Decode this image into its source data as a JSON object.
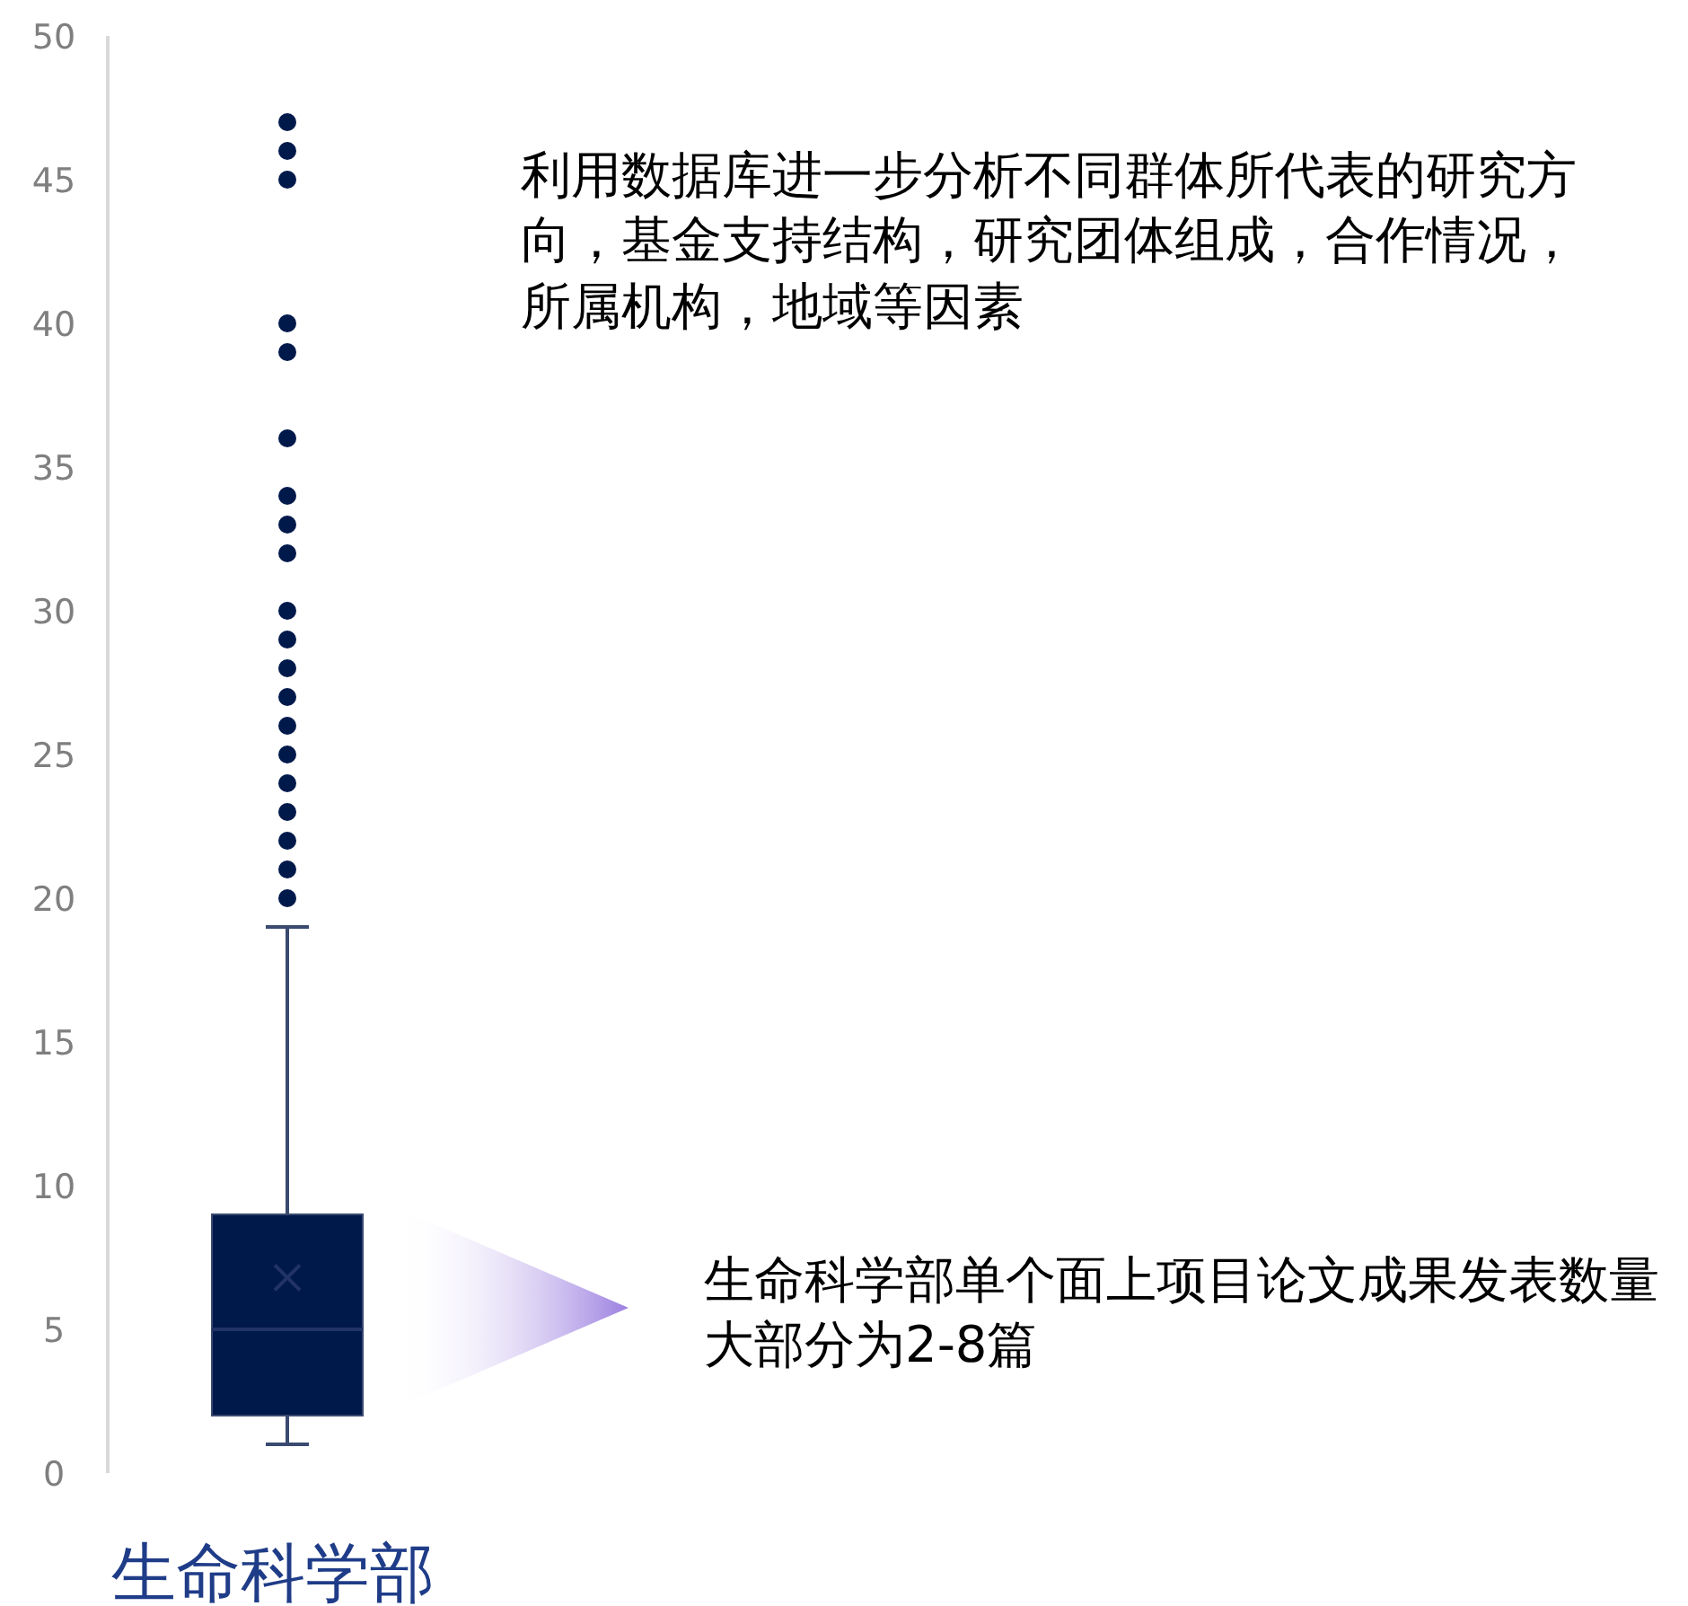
{
  "chart_data": {
    "type": "box",
    "categories": [
      "生命科学部"
    ],
    "boxes": [
      {
        "low": 1,
        "q1": 2,
        "median": 5,
        "q3": 9,
        "high": 19,
        "mean": 6.8,
        "outliers": [
          20,
          21,
          22,
          23,
          24,
          25,
          26,
          27,
          28,
          29,
          30,
          32,
          33,
          34,
          36,
          39,
          40,
          45,
          46,
          47
        ]
      }
    ],
    "color": "#00194b",
    "marker": "circle",
    "grid": false,
    "ylim": [
      0,
      50
    ],
    "yticks": [
      0,
      5,
      10,
      15,
      20,
      25,
      30,
      35,
      40,
      45,
      50
    ],
    "annotations": [
      "利用数据库进一步分析不同群体所代表的研究方向，基金支持结构，研究团体组成，合作情况，所属机构，地域等因素",
      "生命科学部单个面上项目论文成果发表数量大部分为2-8篇"
    ]
  }
}
